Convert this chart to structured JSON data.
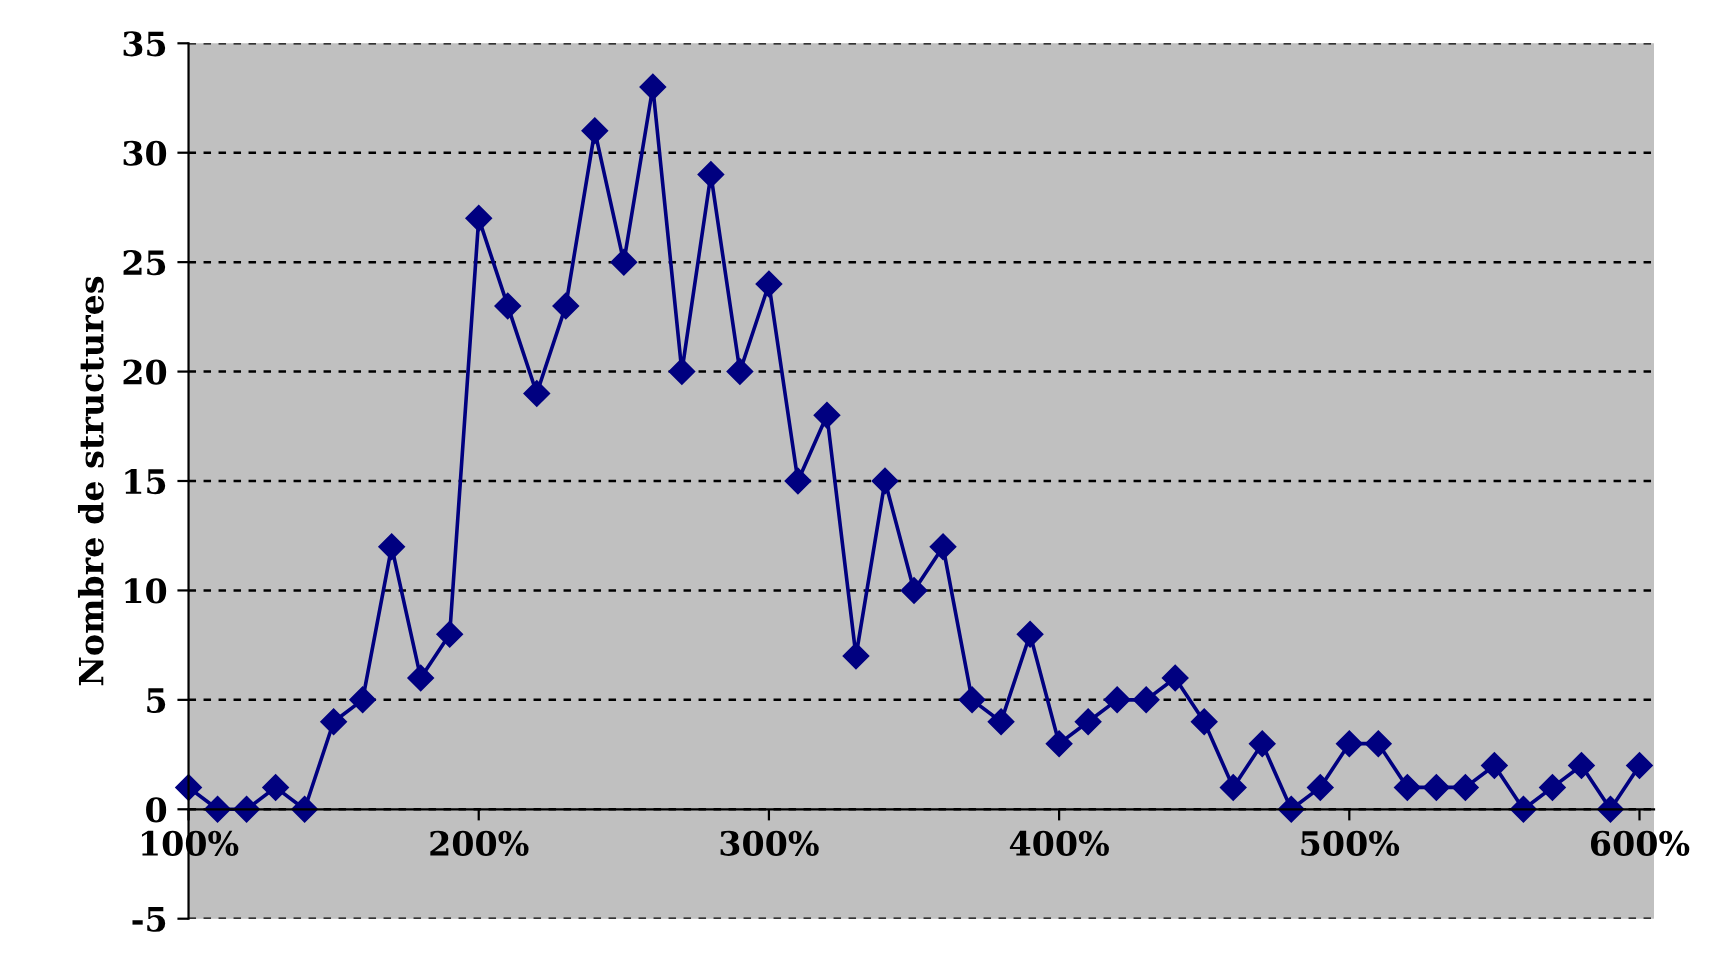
{
  "chart_data": {
    "type": "line",
    "ylabel": "Nombre de structures",
    "x": [
      100,
      110,
      120,
      130,
      140,
      150,
      160,
      170,
      180,
      190,
      200,
      210,
      220,
      230,
      240,
      250,
      260,
      270,
      280,
      290,
      300,
      310,
      320,
      330,
      340,
      350,
      360,
      370,
      380,
      390,
      400,
      410,
      420,
      430,
      440,
      450,
      460,
      470,
      480,
      490,
      500,
      510,
      520,
      530,
      540,
      550,
      560,
      570,
      580,
      590,
      600
    ],
    "series": [
      {
        "color": "#000080",
        "values": [
          1,
          0,
          0,
          1,
          0,
          4,
          5,
          12,
          6,
          8,
          27,
          23,
          19,
          23,
          31,
          25,
          33,
          20,
          29,
          20,
          24,
          15,
          18,
          7,
          15,
          10,
          12,
          5,
          4,
          8,
          3,
          4,
          5,
          5,
          6,
          4,
          1,
          3,
          0,
          1,
          3,
          3,
          1,
          1,
          1,
          2,
          0,
          1,
          2,
          0,
          2
        ]
      }
    ],
    "xlim": [
      100,
      605
    ],
    "ylim": [
      -5,
      35
    ],
    "xticks": [
      {
        "value": 100,
        "label": "100%"
      },
      {
        "value": 200,
        "label": "200%"
      },
      {
        "value": 300,
        "label": "300%"
      },
      {
        "value": 400,
        "label": "400%"
      },
      {
        "value": 500,
        "label": "500%"
      },
      {
        "value": 600,
        "label": "600%"
      }
    ],
    "yticks": [
      -5,
      0,
      5,
      10,
      15,
      20,
      25,
      30,
      35
    ],
    "grid": "y",
    "marker": "diamond",
    "line_style": "solid",
    "legend": false
  }
}
